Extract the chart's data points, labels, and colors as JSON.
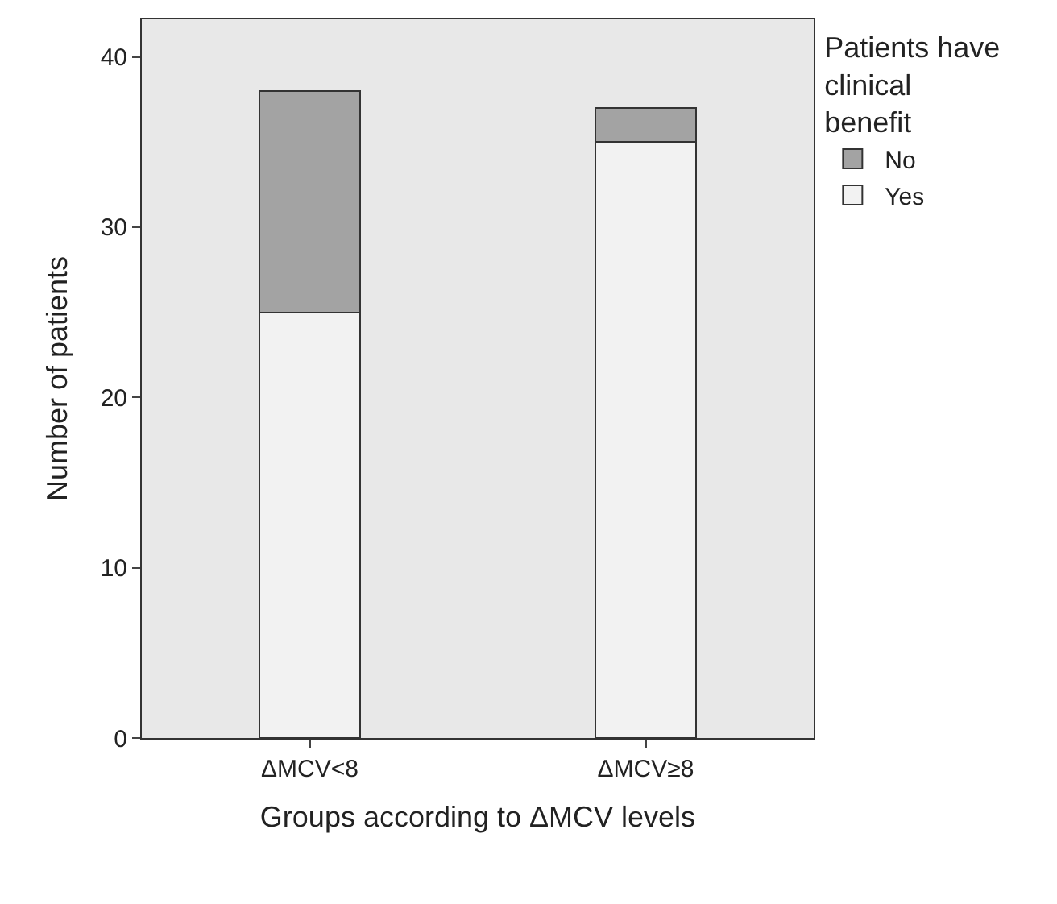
{
  "chart_data": {
    "type": "bar",
    "stacked": true,
    "xlabel": "Groups according to ΔMCV levels",
    "ylabel": "Number of patients",
    "legend_title": "Patients have clinical benefit",
    "categories": [
      "ΔMCV<8",
      "ΔMCV≥8"
    ],
    "series": [
      {
        "name": "Yes",
        "color": "#f2f2f2",
        "values": [
          25,
          35
        ]
      },
      {
        "name": "No",
        "color": "#a3a3a3",
        "values": [
          13,
          2
        ]
      }
    ],
    "ylim": [
      0,
      42.2
    ],
    "yticks": [
      0,
      10,
      20,
      30,
      40
    ],
    "grid": false,
    "legend": "right"
  }
}
